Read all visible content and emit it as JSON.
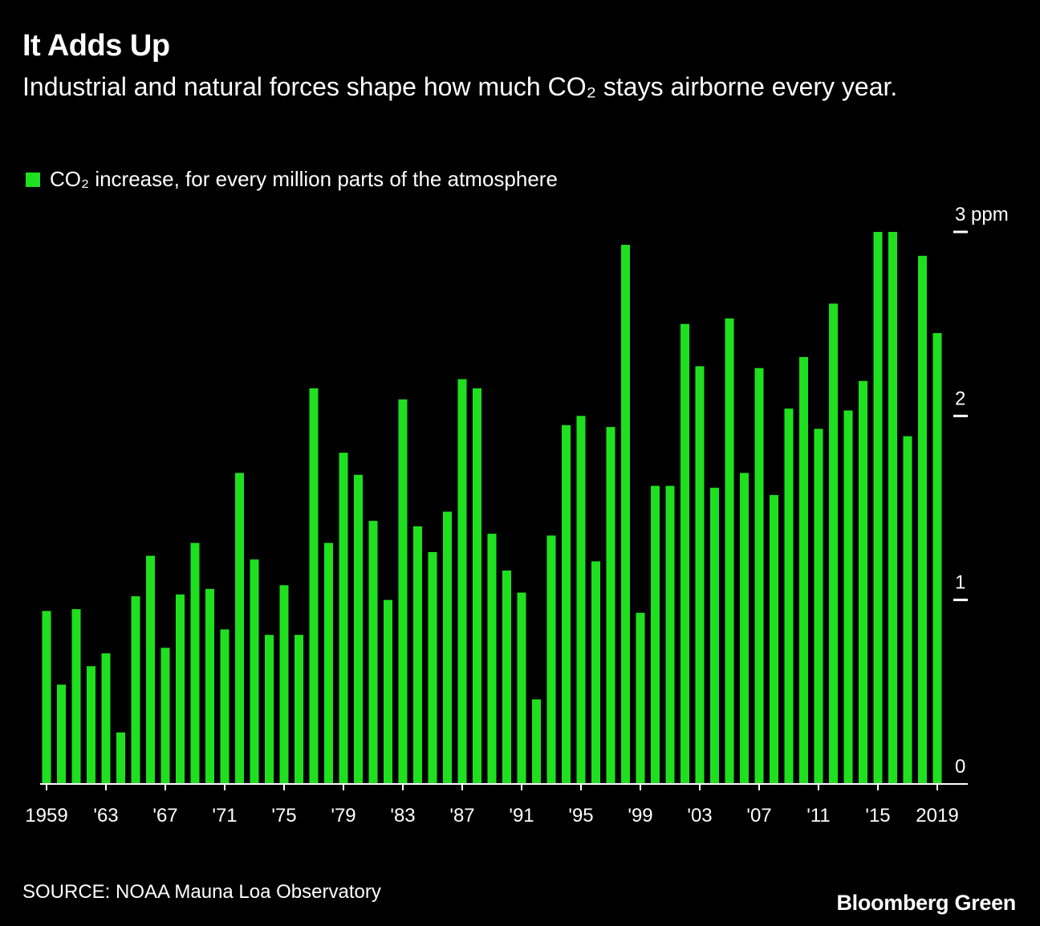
{
  "header": {
    "title": "It Adds Up",
    "subtitle": "Industrial and natural forces shape how much CO₂ stays airborne every year."
  },
  "legend": {
    "label": "CO₂ increase, for every million parts of the atmosphere",
    "color": "#1fe01f"
  },
  "footer": {
    "source": "SOURCE: NOAA Mauna Loa Observatory",
    "brand": "Bloomberg Green"
  },
  "chart_data": {
    "type": "bar",
    "title": "It Adds Up",
    "ylabel": "ppm",
    "ylim": [
      0,
      3
    ],
    "y_ticks": [
      {
        "value": 0,
        "label": "0"
      },
      {
        "value": 1,
        "label": "1"
      },
      {
        "value": 2,
        "label": "2"
      },
      {
        "value": 3,
        "label": "3 ppm"
      }
    ],
    "x_tick_labels": [
      {
        "year": 1959,
        "label": "1959"
      },
      {
        "year": 1963,
        "label": "'63"
      },
      {
        "year": 1967,
        "label": "'67"
      },
      {
        "year": 1971,
        "label": "'71"
      },
      {
        "year": 1975,
        "label": "'75"
      },
      {
        "year": 1979,
        "label": "'79"
      },
      {
        "year": 1983,
        "label": "'83"
      },
      {
        "year": 1987,
        "label": "'87"
      },
      {
        "year": 1991,
        "label": "'91"
      },
      {
        "year": 1995,
        "label": "'95"
      },
      {
        "year": 1999,
        "label": "'99"
      },
      {
        "year": 2003,
        "label": "'03"
      },
      {
        "year": 2007,
        "label": "'07"
      },
      {
        "year": 2011,
        "label": "'11"
      },
      {
        "year": 2015,
        "label": "'15"
      },
      {
        "year": 2019,
        "label": "2019"
      }
    ],
    "categories": [
      1959,
      1960,
      1961,
      1962,
      1963,
      1964,
      1965,
      1966,
      1967,
      1968,
      1969,
      1970,
      1971,
      1972,
      1973,
      1974,
      1975,
      1976,
      1977,
      1978,
      1979,
      1980,
      1981,
      1982,
      1983,
      1984,
      1985,
      1986,
      1987,
      1988,
      1989,
      1990,
      1991,
      1992,
      1993,
      1994,
      1995,
      1996,
      1997,
      1998,
      1999,
      2000,
      2001,
      2002,
      2003,
      2004,
      2005,
      2006,
      2007,
      2008,
      2009,
      2010,
      2011,
      2012,
      2013,
      2014,
      2015,
      2016,
      2017,
      2018,
      2019
    ],
    "values": [
      0.94,
      0.54,
      0.95,
      0.64,
      0.71,
      0.28,
      1.02,
      1.24,
      0.74,
      1.03,
      1.31,
      1.06,
      0.84,
      1.69,
      1.22,
      0.81,
      1.08,
      0.81,
      2.15,
      1.31,
      1.8,
      1.68,
      1.43,
      1.0,
      2.09,
      1.4,
      1.26,
      1.48,
      2.2,
      2.15,
      1.36,
      1.16,
      1.04,
      0.46,
      1.35,
      1.95,
      2.0,
      1.21,
      1.94,
      2.93,
      0.93,
      1.62,
      1.62,
      2.5,
      2.27,
      1.61,
      2.53,
      1.69,
      2.26,
      1.57,
      2.04,
      2.32,
      1.93,
      2.61,
      2.03,
      2.19,
      3.0,
      3.0,
      1.89,
      2.87,
      2.45
    ]
  }
}
